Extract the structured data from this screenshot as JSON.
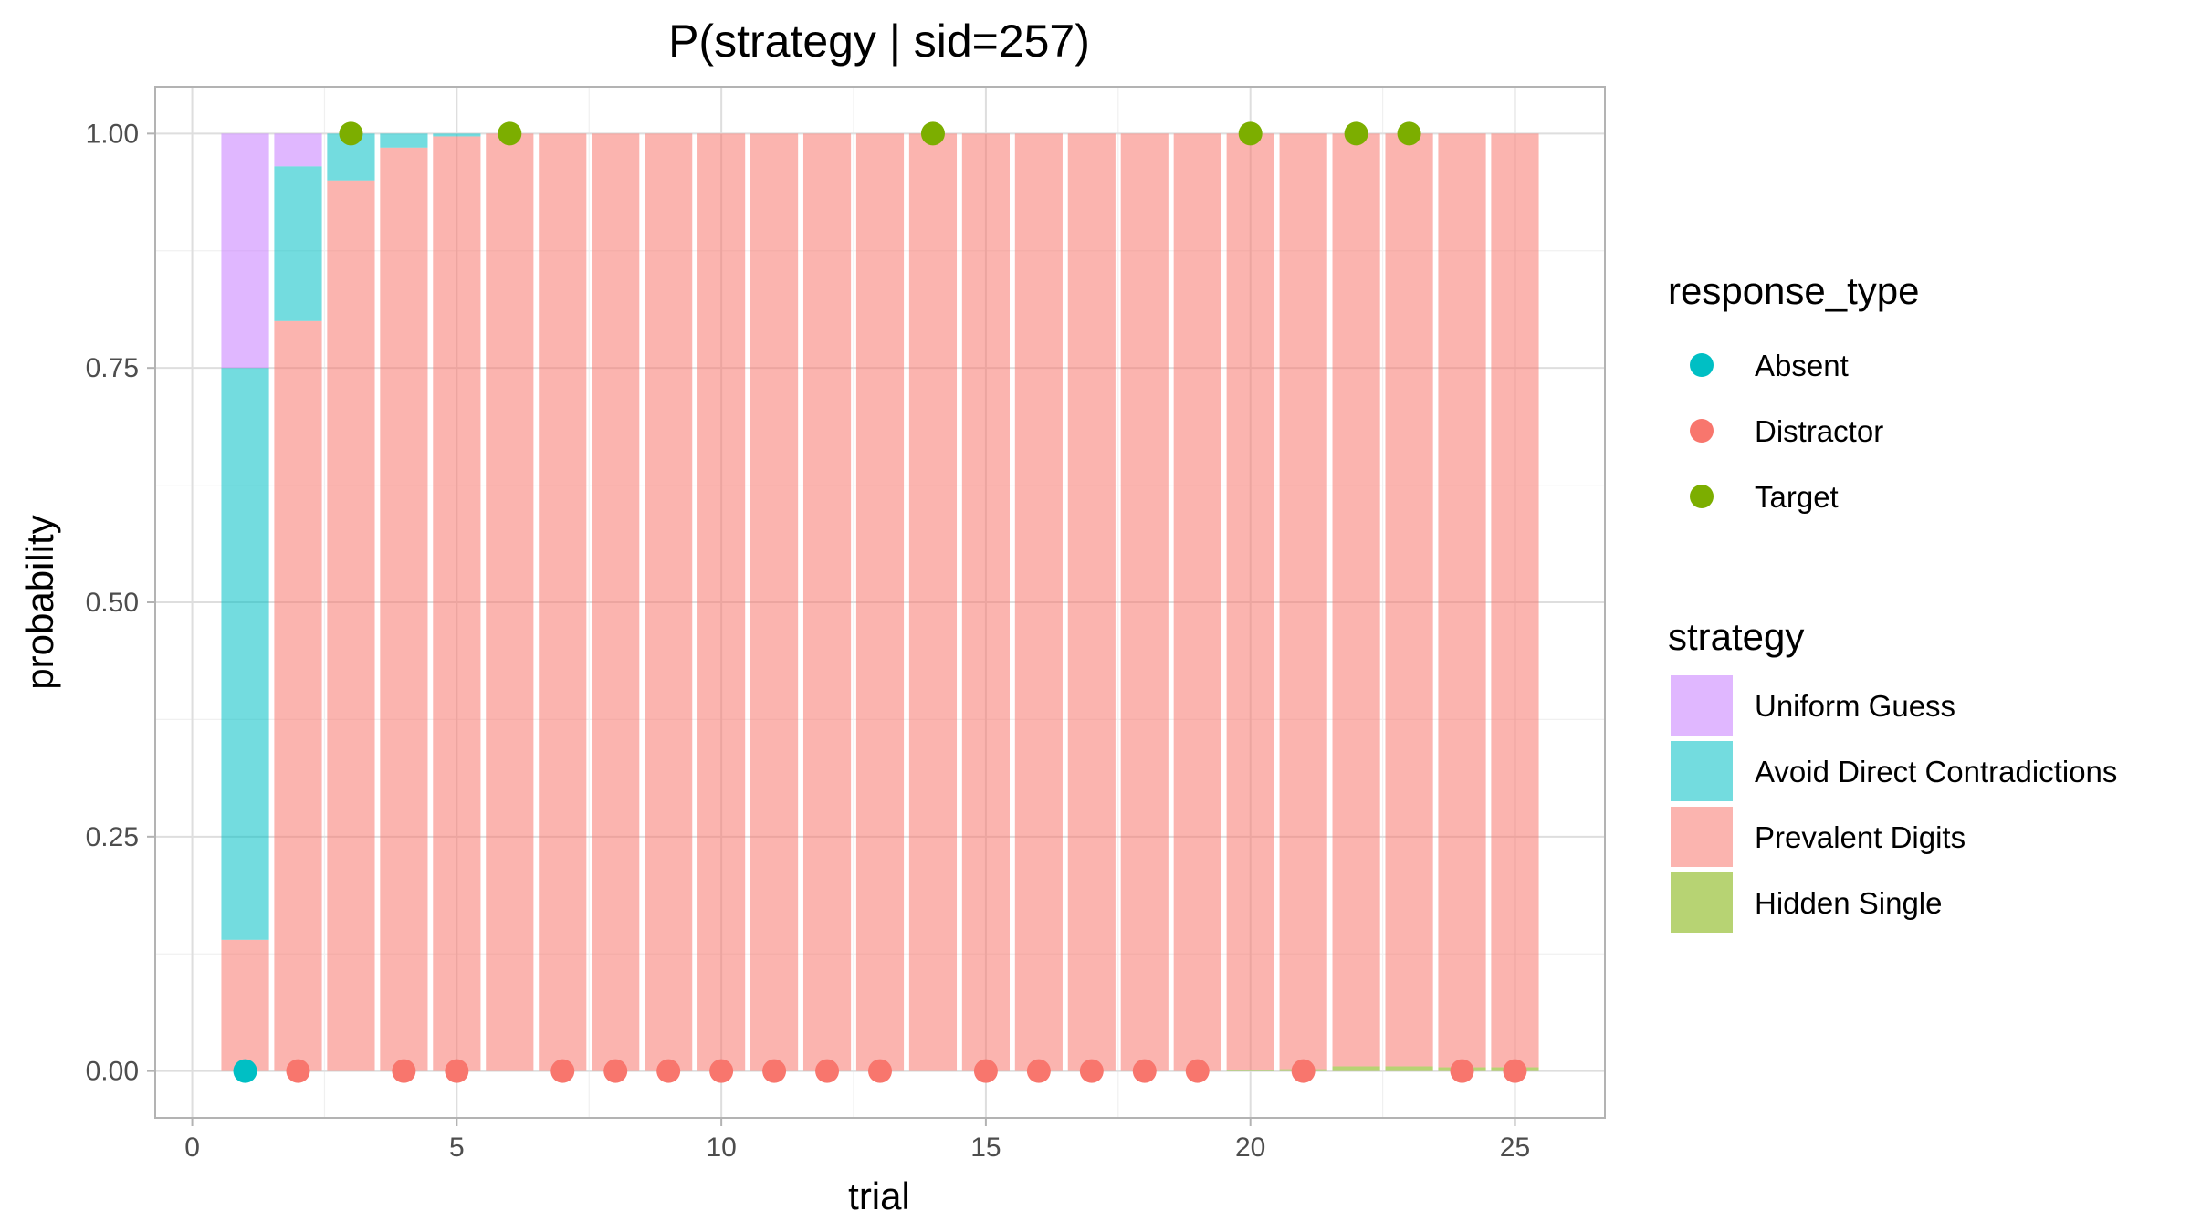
{
  "chart_data": {
    "type": "bar",
    "title": "P(strategy | sid=257)",
    "xlabel": "trial",
    "ylabel": "probability",
    "xlim": [
      -0.7,
      26.7
    ],
    "ylim": [
      -0.05,
      1.05
    ],
    "x_ticks": [
      0,
      5,
      10,
      15,
      20,
      25
    ],
    "x_tick_labels": [
      "0",
      "5",
      "10",
      "15",
      "20",
      "25"
    ],
    "y_ticks": [
      0,
      0.25,
      0.5,
      0.75,
      1
    ],
    "y_tick_labels": [
      "0.00",
      "0.25",
      "0.50",
      "0.75",
      "1.00"
    ],
    "grid": true,
    "stacked": true,
    "trials": [
      1,
      2,
      3,
      4,
      5,
      6,
      7,
      8,
      9,
      10,
      11,
      12,
      13,
      14,
      15,
      16,
      17,
      18,
      19,
      20,
      21,
      22,
      23,
      24,
      25
    ],
    "series": [
      {
        "name": "Hidden Single",
        "color": "#7CAE00",
        "values": [
          0,
          0,
          0,
          0,
          0,
          0,
          0,
          0,
          0,
          0,
          0,
          0,
          0,
          0,
          0,
          0,
          0,
          0,
          0,
          0.001,
          0.002,
          0.005,
          0.005,
          0.004,
          0.004
        ]
      },
      {
        "name": "Prevalent Digits",
        "color": "#F8766D",
        "values": [
          0.14,
          0.8,
          0.95,
          0.985,
          0.997,
          1,
          1,
          1,
          1,
          1,
          1,
          1,
          1,
          1,
          1,
          1,
          1,
          1,
          1,
          0.999,
          0.998,
          0.995,
          0.995,
          0.996,
          0.996
        ]
      },
      {
        "name": "Avoid Direct Contradictions",
        "color": "#00BFC4",
        "values": [
          0.61,
          0.165,
          0.05,
          0.015,
          0.003,
          0,
          0,
          0,
          0,
          0,
          0,
          0,
          0,
          0,
          0,
          0,
          0,
          0,
          0,
          0,
          0,
          0,
          0,
          0,
          0
        ]
      },
      {
        "name": "Uniform Guess",
        "color": "#C77CFF",
        "values": [
          0.25,
          0.035,
          0,
          0,
          0,
          0,
          0,
          0,
          0,
          0,
          0,
          0,
          0,
          0,
          0,
          0,
          0,
          0,
          0,
          0,
          0,
          0,
          0,
          0,
          0
        ]
      }
    ],
    "legend_strategy": {
      "title": "strategy",
      "items": [
        {
          "label": "Uniform Guess",
          "color": "#C77CFF"
        },
        {
          "label": "Avoid Direct Contradictions",
          "color": "#00BFC4"
        },
        {
          "label": "Prevalent Digits",
          "color": "#F8766D"
        },
        {
          "label": "Hidden Single",
          "color": "#7CAE00"
        }
      ]
    },
    "legend_response": {
      "title": "response_type",
      "items": [
        {
          "label": "Absent",
          "color": "#00BFC4"
        },
        {
          "label": "Distractor",
          "color": "#F8766D"
        },
        {
          "label": "Target",
          "color": "#7CAE00"
        }
      ]
    },
    "legend_position": "right",
    "responses": [
      {
        "trial": 1,
        "type": "Absent"
      },
      {
        "trial": 2,
        "type": "Distractor"
      },
      {
        "trial": 3,
        "type": "Target"
      },
      {
        "trial": 4,
        "type": "Distractor"
      },
      {
        "trial": 5,
        "type": "Distractor"
      },
      {
        "trial": 6,
        "type": "Target"
      },
      {
        "trial": 7,
        "type": "Distractor"
      },
      {
        "trial": 8,
        "type": "Distractor"
      },
      {
        "trial": 9,
        "type": "Distractor"
      },
      {
        "trial": 10,
        "type": "Distractor"
      },
      {
        "trial": 11,
        "type": "Distractor"
      },
      {
        "trial": 12,
        "type": "Distractor"
      },
      {
        "trial": 13,
        "type": "Distractor"
      },
      {
        "trial": 14,
        "type": "Target"
      },
      {
        "trial": 15,
        "type": "Distractor"
      },
      {
        "trial": 16,
        "type": "Distractor"
      },
      {
        "trial": 17,
        "type": "Distractor"
      },
      {
        "trial": 18,
        "type": "Distractor"
      },
      {
        "trial": 19,
        "type": "Distractor"
      },
      {
        "trial": 20,
        "type": "Target"
      },
      {
        "trial": 21,
        "type": "Distractor"
      },
      {
        "trial": 22,
        "type": "Target"
      },
      {
        "trial": 23,
        "type": "Target"
      },
      {
        "trial": 24,
        "type": "Distractor"
      },
      {
        "trial": 25,
        "type": "Distractor"
      }
    ]
  }
}
